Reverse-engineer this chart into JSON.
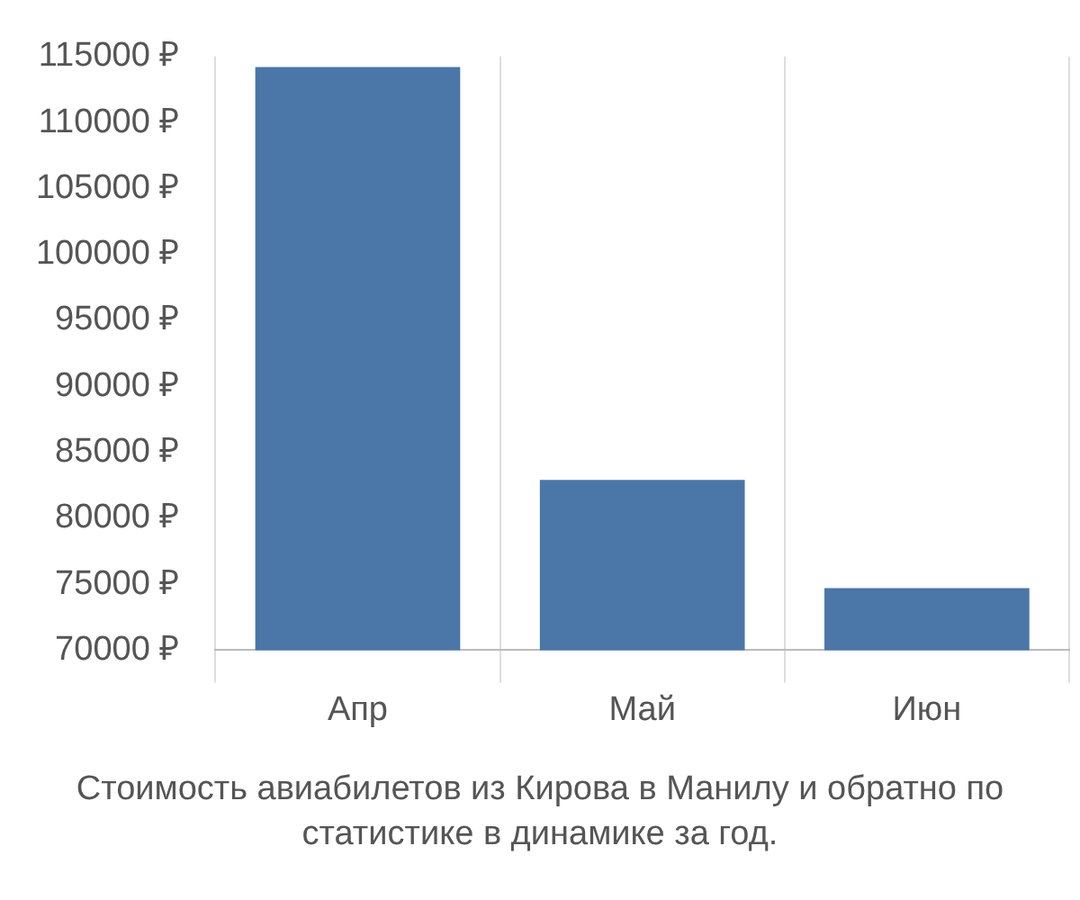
{
  "chart_data": {
    "type": "bar",
    "categories": [
      "Апр",
      "Май",
      "Июн"
    ],
    "values": [
      114200,
      82900,
      74700
    ],
    "color": "#4a76a8",
    "ylim": [
      70000,
      115000
    ],
    "yticks": [
      {
        "value": 70000,
        "label": "70000 ₽"
      },
      {
        "value": 75000,
        "label": "75000 ₽"
      },
      {
        "value": 80000,
        "label": "80000 ₽"
      },
      {
        "value": 85000,
        "label": "85000 ₽"
      },
      {
        "value": 90000,
        "label": "90000 ₽"
      },
      {
        "value": 95000,
        "label": "95000 ₽"
      },
      {
        "value": 100000,
        "label": "100000 ₽"
      },
      {
        "value": 105000,
        "label": "105000 ₽"
      },
      {
        "value": 110000,
        "label": "110000 ₽"
      },
      {
        "value": 115000,
        "label": "115000 ₽"
      }
    ],
    "grid": "x",
    "legend": false,
    "annotations": [
      "Стоимость авиабилетов из Кирова в Манилу и обратно по статистике в динамике за год."
    ]
  }
}
